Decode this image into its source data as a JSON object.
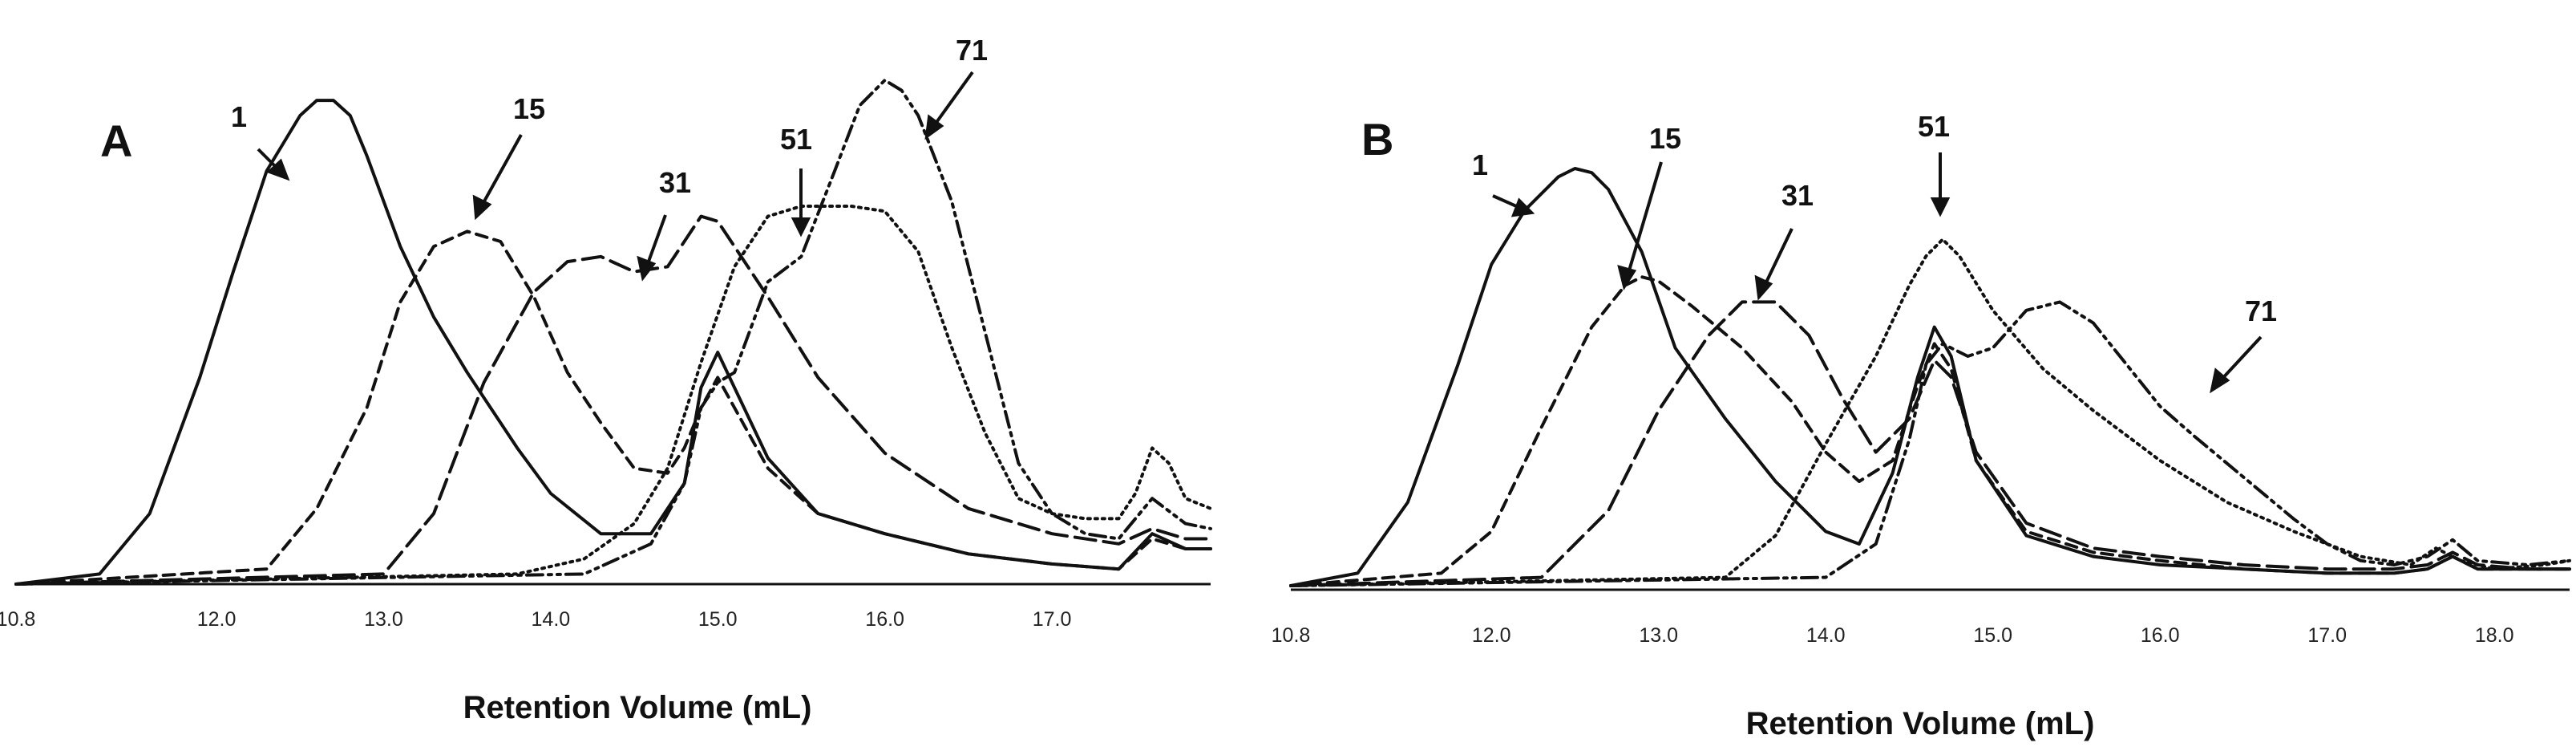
{
  "chart_data": [
    {
      "panel": "A",
      "type": "line",
      "xlabel": "Retention Volume (mL)",
      "xlim": [
        10.8,
        17.95
      ],
      "ylim": [
        0,
        1.0
      ],
      "ticks": [
        "10.8",
        "12.0",
        "13.0",
        "14.0",
        "15.0",
        "16.0",
        "17.0"
      ],
      "tick_values": [
        10.8,
        12.0,
        13.0,
        14.0,
        15.0,
        16.0,
        17.0
      ],
      "grid": false,
      "series": [
        {
          "label": "1",
          "dash": "solid",
          "x": [
            10.8,
            11.3,
            11.6,
            11.9,
            12.1,
            12.3,
            12.5,
            12.6,
            12.7,
            12.8,
            12.9,
            13.1,
            13.3,
            13.5,
            13.8,
            14.0,
            14.3,
            14.6,
            14.8,
            14.9,
            15.0,
            15.1,
            15.3,
            15.6,
            16.0,
            16.5,
            17.0,
            17.4,
            17.6,
            17.8,
            17.95
          ],
          "y": [
            0.0,
            0.02,
            0.14,
            0.41,
            0.62,
            0.82,
            0.93,
            0.96,
            0.96,
            0.93,
            0.85,
            0.67,
            0.53,
            0.42,
            0.27,
            0.18,
            0.1,
            0.1,
            0.2,
            0.39,
            0.46,
            0.39,
            0.25,
            0.14,
            0.1,
            0.06,
            0.04,
            0.03,
            0.1,
            0.07,
            0.07
          ]
        },
        {
          "label": "15",
          "dash": "dash",
          "x": [
            10.8,
            12.3,
            12.6,
            12.9,
            13.1,
            13.3,
            13.5,
            13.7,
            13.9,
            14.1,
            14.3,
            14.5,
            14.7,
            14.8,
            14.9,
            15.0,
            15.1,
            15.3,
            15.6,
            16.0,
            16.5,
            17.0,
            17.4,
            17.6,
            17.8,
            17.95
          ],
          "y": [
            0.0,
            0.03,
            0.15,
            0.35,
            0.56,
            0.67,
            0.7,
            0.68,
            0.57,
            0.42,
            0.32,
            0.23,
            0.22,
            0.27,
            0.35,
            0.41,
            0.35,
            0.23,
            0.14,
            0.1,
            0.06,
            0.04,
            0.03,
            0.09,
            0.07,
            0.07
          ]
        },
        {
          "label": "31",
          "dash": "longdash",
          "x": [
            10.8,
            13.0,
            13.3,
            13.6,
            13.9,
            14.1,
            14.3,
            14.5,
            14.7,
            14.9,
            15.0,
            15.1,
            15.3,
            15.6,
            16.0,
            16.5,
            17.0,
            17.4,
            17.6,
            17.8,
            17.95
          ],
          "y": [
            0.0,
            0.02,
            0.14,
            0.4,
            0.58,
            0.64,
            0.65,
            0.62,
            0.63,
            0.73,
            0.72,
            0.67,
            0.57,
            0.41,
            0.26,
            0.15,
            0.1,
            0.08,
            0.11,
            0.09,
            0.09
          ]
        },
        {
          "label": "51",
          "dash": "dot",
          "x": [
            10.8,
            13.8,
            14.2,
            14.5,
            14.7,
            14.9,
            15.1,
            15.3,
            15.5,
            15.8,
            16.0,
            16.2,
            16.4,
            16.6,
            16.8,
            17.0,
            17.2,
            17.4,
            17.5,
            17.6,
            17.7,
            17.8,
            17.95
          ],
          "y": [
            0.0,
            0.02,
            0.05,
            0.12,
            0.23,
            0.44,
            0.63,
            0.73,
            0.75,
            0.75,
            0.74,
            0.66,
            0.47,
            0.3,
            0.17,
            0.14,
            0.13,
            0.13,
            0.18,
            0.27,
            0.24,
            0.17,
            0.15
          ]
        },
        {
          "label": "71",
          "dash": "dashdotdot",
          "x": [
            10.8,
            14.2,
            14.6,
            14.8,
            14.9,
            15.0,
            15.1,
            15.3,
            15.5,
            15.7,
            15.85,
            16.0,
            16.1,
            16.2,
            16.4,
            16.6,
            16.8,
            17.0,
            17.2,
            17.4,
            17.6,
            17.8,
            17.95
          ],
          "y": [
            0.0,
            0.02,
            0.08,
            0.2,
            0.35,
            0.4,
            0.42,
            0.6,
            0.65,
            0.82,
            0.95,
            1.0,
            0.98,
            0.93,
            0.76,
            0.5,
            0.24,
            0.14,
            0.1,
            0.09,
            0.17,
            0.12,
            0.11
          ]
        }
      ],
      "annotations": [
        "1",
        "15",
        "31",
        "51",
        "71"
      ]
    },
    {
      "panel": "B",
      "type": "line",
      "xlabel": "Retention Volume (mL)",
      "xlim": [
        10.8,
        18.45
      ],
      "ylim": [
        0,
        1.0
      ],
      "ticks": [
        "10.8",
        "12.0",
        "13.0",
        "14.0",
        "15.0",
        "16.0",
        "17.0",
        "18.0"
      ],
      "tick_values": [
        10.8,
        12.0,
        13.0,
        14.0,
        15.0,
        16.0,
        17.0,
        18.0
      ],
      "grid": false,
      "series": [
        {
          "label": "1",
          "dash": "solid",
          "x": [
            10.8,
            11.2,
            11.5,
            11.8,
            12.0,
            12.2,
            12.4,
            12.5,
            12.6,
            12.7,
            12.9,
            13.1,
            13.4,
            13.7,
            14.0,
            14.2,
            14.4,
            14.55,
            14.65,
            14.75,
            14.9,
            15.2,
            15.6,
            16.0,
            16.5,
            17.0,
            17.4,
            17.6,
            17.75,
            17.9,
            18.2,
            18.45
          ],
          "y": [
            0.0,
            0.03,
            0.2,
            0.53,
            0.77,
            0.9,
            0.98,
            1.0,
            0.99,
            0.95,
            0.8,
            0.57,
            0.4,
            0.25,
            0.13,
            0.1,
            0.27,
            0.5,
            0.62,
            0.55,
            0.3,
            0.12,
            0.07,
            0.05,
            0.04,
            0.03,
            0.03,
            0.04,
            0.07,
            0.04,
            0.04,
            0.04
          ]
        },
        {
          "label": "15",
          "dash": "dash",
          "x": [
            10.8,
            11.7,
            12.0,
            12.3,
            12.6,
            12.8,
            12.9,
            13.0,
            13.2,
            13.5,
            13.8,
            14.0,
            14.2,
            14.4,
            14.55,
            14.65,
            14.75,
            14.9,
            15.2,
            15.6,
            16.0,
            16.5,
            17.0,
            17.4,
            17.6,
            17.75,
            17.9,
            18.2,
            18.45
          ],
          "y": [
            0.0,
            0.03,
            0.13,
            0.38,
            0.62,
            0.72,
            0.74,
            0.73,
            0.67,
            0.57,
            0.44,
            0.32,
            0.25,
            0.3,
            0.48,
            0.58,
            0.52,
            0.3,
            0.13,
            0.08,
            0.06,
            0.04,
            0.03,
            0.03,
            0.04,
            0.07,
            0.04,
            0.04,
            0.04
          ]
        },
        {
          "label": "31",
          "dash": "longdash",
          "x": [
            10.8,
            12.3,
            12.7,
            13.0,
            13.3,
            13.5,
            13.7,
            13.9,
            14.1,
            14.3,
            14.5,
            14.65,
            14.75,
            14.9,
            15.2,
            15.6,
            16.0,
            16.5,
            17.0,
            17.4,
            17.6,
            17.75,
            17.9,
            18.2,
            18.45
          ],
          "y": [
            0.0,
            0.02,
            0.18,
            0.42,
            0.6,
            0.68,
            0.68,
            0.6,
            0.45,
            0.32,
            0.4,
            0.54,
            0.5,
            0.32,
            0.15,
            0.09,
            0.07,
            0.05,
            0.04,
            0.04,
            0.05,
            0.08,
            0.05,
            0.04,
            0.04
          ]
        },
        {
          "label": "51",
          "dash": "dot",
          "x": [
            10.8,
            13.4,
            13.7,
            14.0,
            14.3,
            14.5,
            14.6,
            14.7,
            14.8,
            15.0,
            15.3,
            15.6,
            16.0,
            16.4,
            16.8,
            17.2,
            17.5,
            17.65,
            17.8,
            18.0,
            18.3,
            18.45
          ],
          "y": [
            0.0,
            0.02,
            0.12,
            0.34,
            0.55,
            0.72,
            0.79,
            0.83,
            0.79,
            0.66,
            0.52,
            0.42,
            0.3,
            0.2,
            0.13,
            0.07,
            0.05,
            0.09,
            0.06,
            0.04,
            0.05,
            0.06
          ]
        },
        {
          "label": "71",
          "dash": "dashdotdot",
          "x": [
            10.8,
            14.0,
            14.3,
            14.5,
            14.6,
            14.7,
            14.85,
            15.0,
            15.2,
            15.4,
            15.6,
            15.8,
            16.0,
            16.2,
            16.5,
            16.8,
            17.0,
            17.2,
            17.4,
            17.6,
            17.75,
            17.9,
            18.2,
            18.45
          ],
          "y": [
            0.0,
            0.02,
            0.1,
            0.35,
            0.53,
            0.58,
            0.55,
            0.57,
            0.66,
            0.68,
            0.63,
            0.53,
            0.43,
            0.36,
            0.26,
            0.16,
            0.1,
            0.06,
            0.05,
            0.07,
            0.11,
            0.06,
            0.05,
            0.06
          ]
        }
      ],
      "annotations": [
        "1",
        "15",
        "31",
        "51",
        "71"
      ]
    }
  ]
}
